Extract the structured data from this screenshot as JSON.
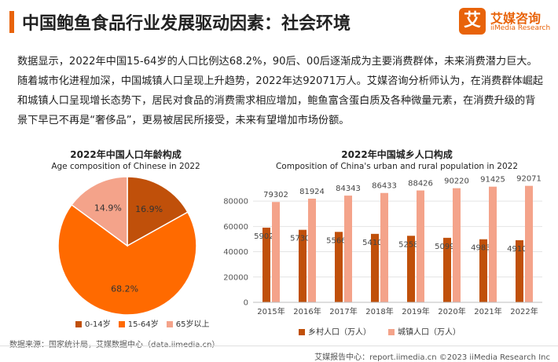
{
  "header": {
    "title": "中国鲍鱼食品行业发展驱动因素：社会环境",
    "logo_mark": "艾",
    "logo_cn": "艾媒咨询",
    "logo_en": "iiMedia Research"
  },
  "body_text": "数据显示，2022年中国15-64岁的人口比例达68.2%，90后、00后逐渐成为主要消费群体，未来消费潜力巨大。随着城市化进程加深，中国城镇人口呈现上升趋势，2022年达92071万人。艾媒咨询分析师认为，在消费群体崛起和城镇人口呈现增长态势下，居民对食品的消费需求相应增加，鲍鱼富含蛋白质及各种微量元素，在消费升级的背景下早已不再是“奢侈品”，更易被居民所接受，未来有望增加市场份额。",
  "colors": {
    "accent": "#e8630a",
    "dark_orange": "#c0500a",
    "orange": "#ff6a00",
    "light_salmon": "#f4a38a"
  },
  "chart_data": [
    {
      "type": "pie",
      "title": "2022年中国人口年龄构成",
      "subtitle": "Age composition of Chinese in 2022",
      "categories": [
        "0-14岁",
        "15-64岁",
        "65岁以上"
      ],
      "values": [
        16.9,
        68.2,
        14.9
      ],
      "labels": [
        "16.9%",
        "68.2%",
        "14.9%"
      ],
      "colors": [
        "#c0500a",
        "#ff6a00",
        "#f4a38a"
      ],
      "legend_position": "bottom"
    },
    {
      "type": "bar",
      "title": "2022年中国城乡人口构成",
      "subtitle": "Composition of China's urban and rural population in 2022",
      "categories": [
        "2015年",
        "2016年",
        "2017年",
        "2018年",
        "2019年",
        "2020年",
        "2021年",
        "2022年"
      ],
      "series": [
        {
          "name": "乡村人口（万人）",
          "values": [
            59024,
            57308,
            55668,
            54108,
            52582,
            50992,
            49835,
            49104
          ],
          "color": "#c0500a"
        },
        {
          "name": "城镇人口（万人）",
          "values": [
            79302,
            81924,
            84343,
            86433,
            88426,
            90220,
            91425,
            92071
          ],
          "color": "#f4a38a"
        }
      ],
      "yticks": [
        "0",
        "20000",
        "40000",
        "60000",
        "80000"
      ],
      "ylim": [
        0,
        90000
      ],
      "grid": true,
      "legend_position": "bottom"
    }
  ],
  "footer": {
    "source": "数据来源：国家统计局，艾媒数据中心（data.iimedia.cn）",
    "copyright": "艾媒报告中心：report.iimedia.cn    ©2023  iiMedia Research  Inc"
  }
}
